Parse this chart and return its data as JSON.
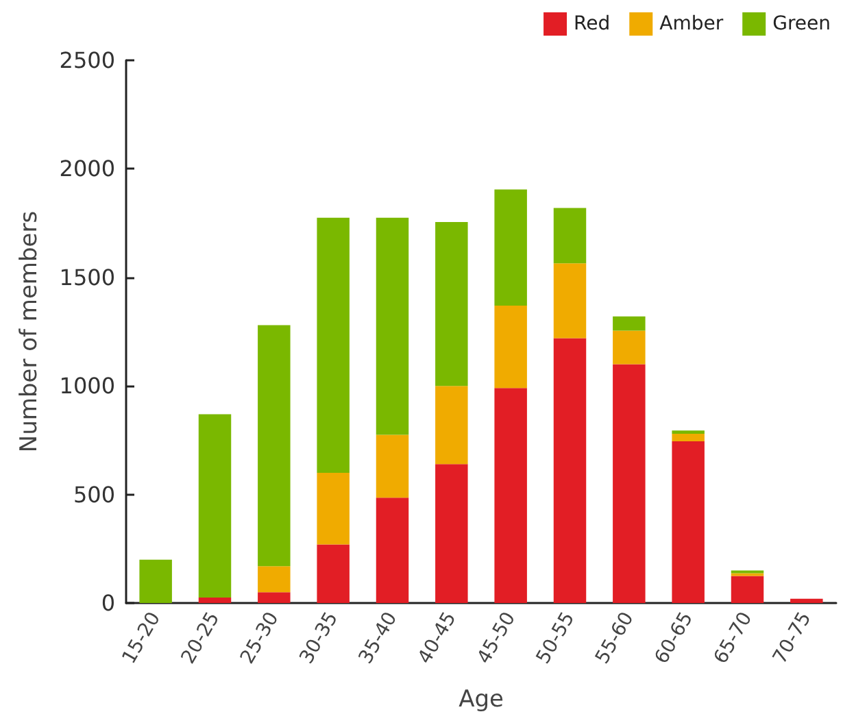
{
  "chart_data": {
    "type": "bar",
    "stacked": true,
    "xlabel": "Age",
    "ylabel": "Number of members",
    "categories": [
      "15-20",
      "20-25",
      "25-30",
      "30-35",
      "35-40",
      "40-45",
      "45-50",
      "50-55",
      "55-60",
      "60-65",
      "65-70",
      "70-75"
    ],
    "series": [
      {
        "name": "Red",
        "color": "#e21e25",
        "values": [
          0,
          25,
          50,
          270,
          485,
          640,
          990,
          1220,
          1100,
          745,
          125,
          20
        ]
      },
      {
        "name": "Amber",
        "color": "#f0ab00",
        "values": [
          0,
          0,
          120,
          330,
          290,
          360,
          380,
          345,
          155,
          35,
          12,
          0
        ]
      },
      {
        "name": "Green",
        "color": "#7ab800",
        "values": [
          200,
          845,
          1110,
          1175,
          1000,
          755,
          535,
          255,
          65,
          15,
          13,
          0
        ]
      }
    ],
    "ylim": [
      0,
      2500
    ],
    "yticks": [
      0,
      500,
      1000,
      1500,
      2000,
      2500
    ],
    "grid": false,
    "legend": "top right"
  }
}
